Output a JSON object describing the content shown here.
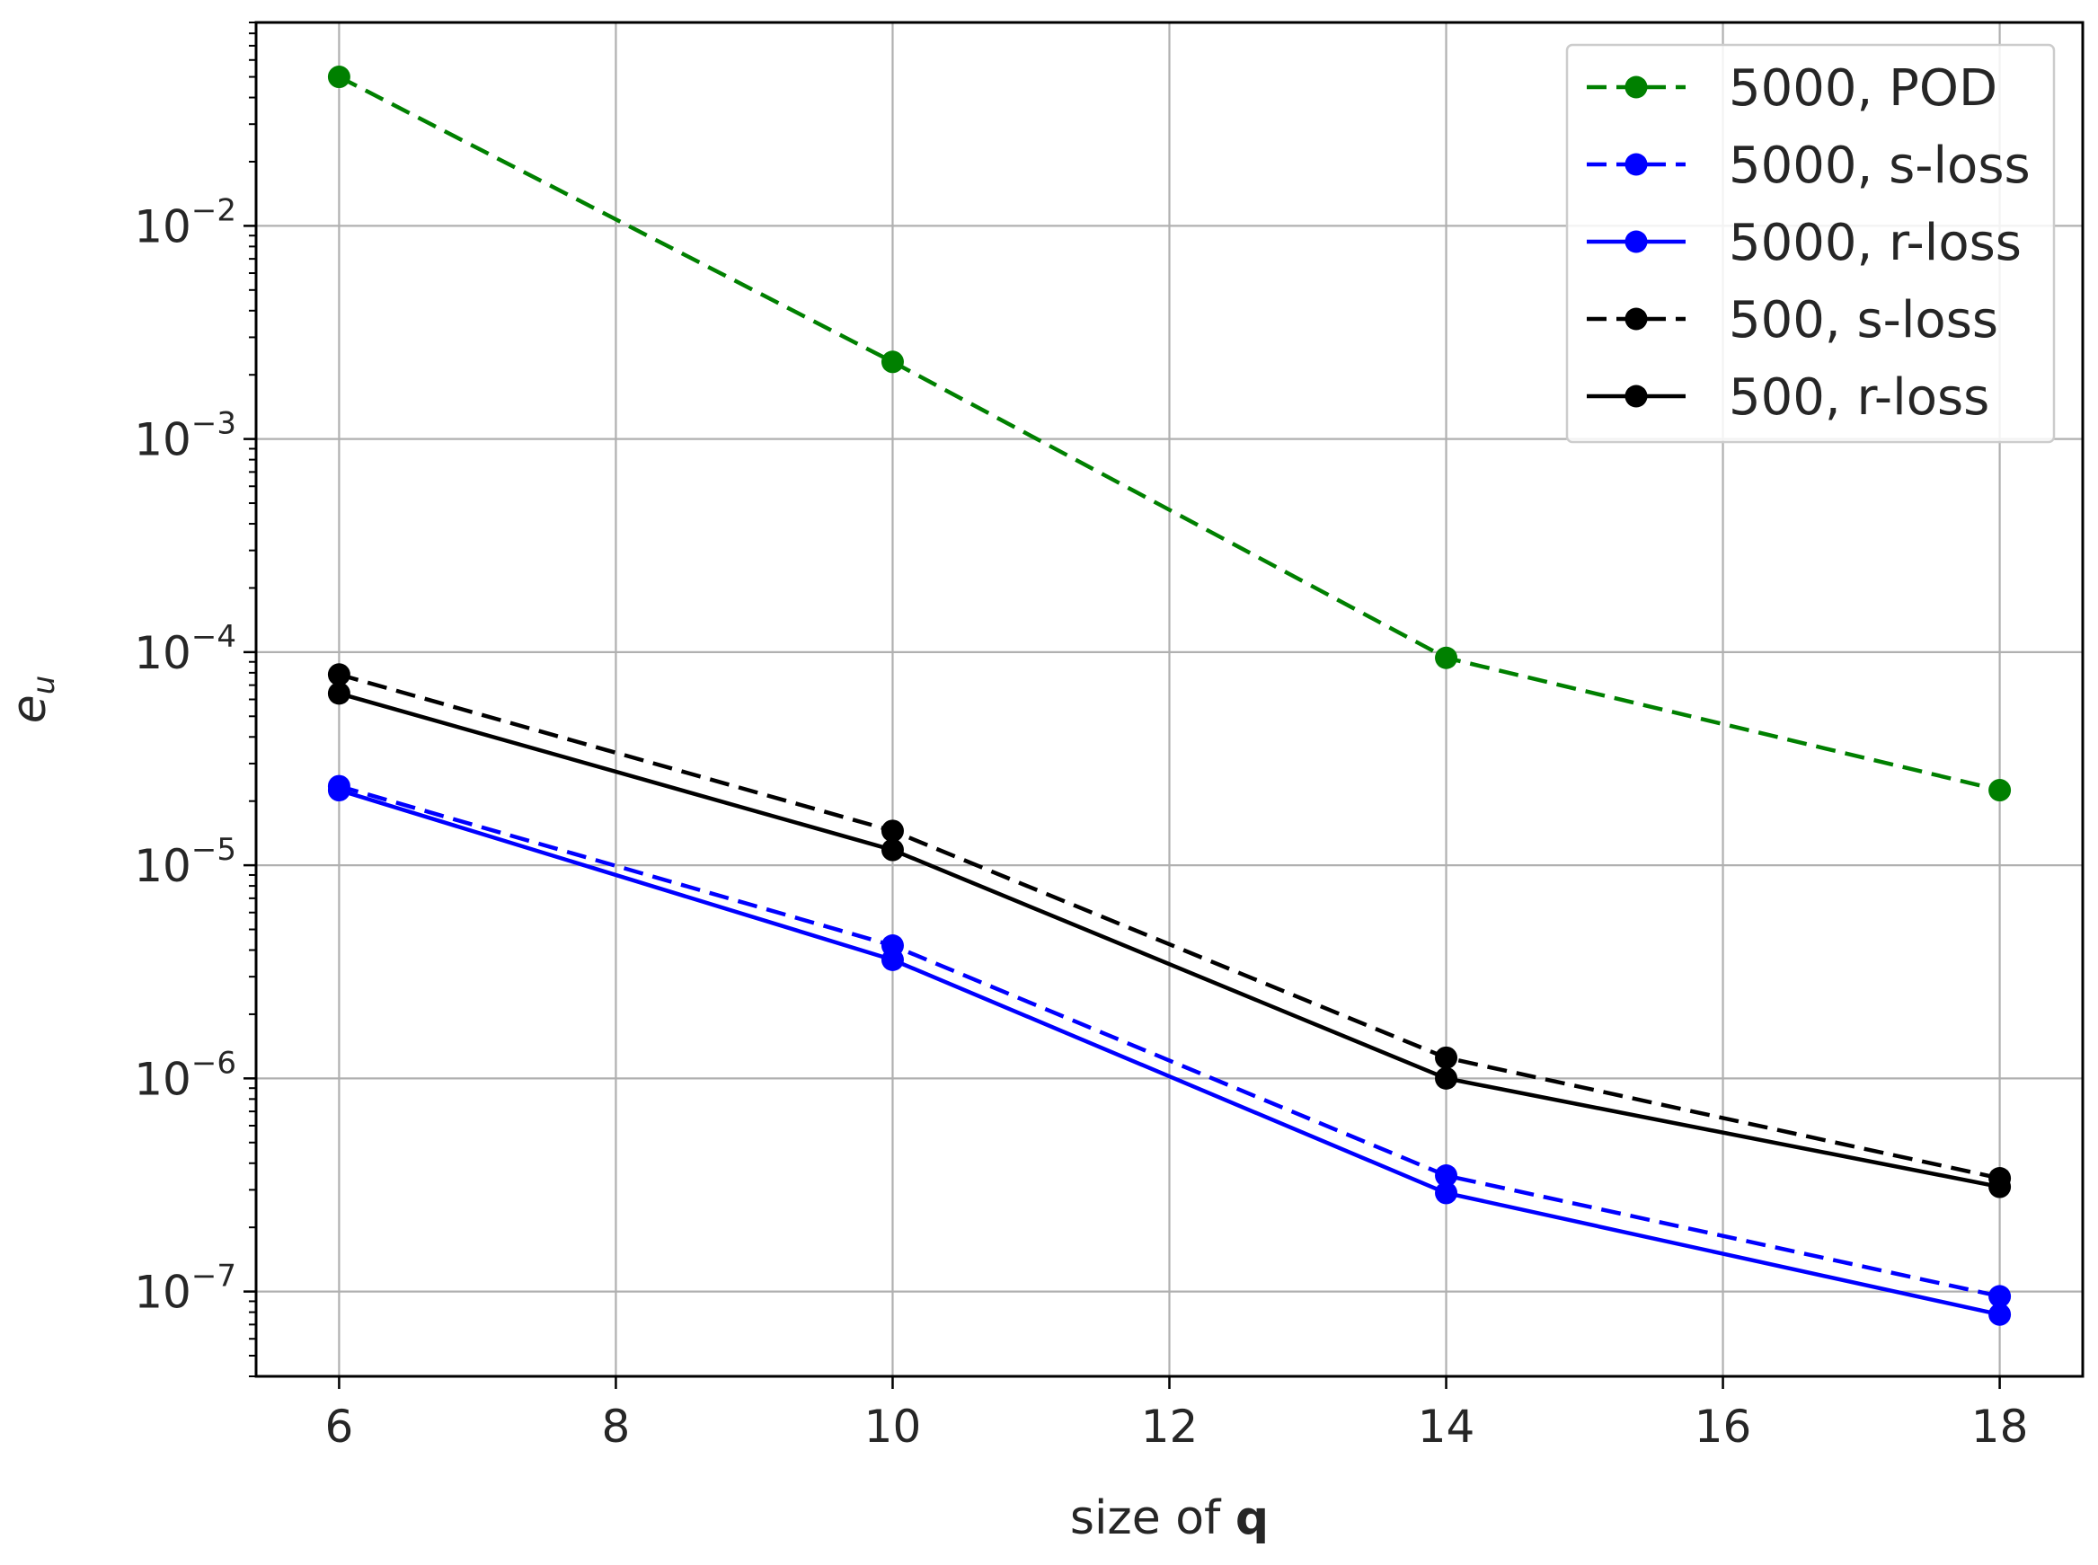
{
  "chart_data": {
    "type": "line",
    "xlabel_text": "size of ",
    "xlabel_bold": "q",
    "ylabel_base": "e",
    "ylabel_sub": "u",
    "y_scale": "log",
    "xlim": [
      5.4,
      18.6
    ],
    "ylim": [
      4e-08,
      0.09
    ],
    "grid": true,
    "legend_position": "top-right",
    "x_ticks": [
      6,
      8,
      10,
      12,
      14,
      16,
      18
    ],
    "x_tick_labels": [
      "6",
      "8",
      "10",
      "12",
      "14",
      "16",
      "18"
    ],
    "y_ticks": [
      1e-07,
      1e-06,
      1e-05,
      0.0001,
      0.001,
      0.01
    ],
    "y_tick_labels": [
      {
        "base": "10",
        "exp": "−7"
      },
      {
        "base": "10",
        "exp": "−6"
      },
      {
        "base": "10",
        "exp": "−5"
      },
      {
        "base": "10",
        "exp": "−4"
      },
      {
        "base": "10",
        "exp": "−3"
      },
      {
        "base": "10",
        "exp": "−2"
      }
    ],
    "x": [
      6,
      10,
      14,
      18
    ],
    "series": [
      {
        "name": "5000, POD",
        "color": "#008000",
        "style": "dashed",
        "values": [
          0.05,
          0.0023,
          9.4e-05,
          2.25e-05
        ]
      },
      {
        "name": "5000, s-loss",
        "color": "#0000ff",
        "style": "dashed",
        "values": [
          2.35e-05,
          4.2e-06,
          3.5e-07,
          9.5e-08
        ]
      },
      {
        "name": "5000, r-loss",
        "color": "#0000ff",
        "style": "solid",
        "values": [
          2.25e-05,
          3.6e-06,
          2.9e-07,
          7.8e-08
        ]
      },
      {
        "name": "500, s-loss",
        "color": "#000000",
        "style": "dashed",
        "values": [
          7.85e-05,
          1.45e-05,
          1.25e-06,
          3.4e-07
        ]
      },
      {
        "name": "500, r-loss",
        "color": "#000000",
        "style": "solid",
        "values": [
          6.4e-05,
          1.18e-05,
          1e-06,
          3.1e-07
        ]
      }
    ]
  }
}
